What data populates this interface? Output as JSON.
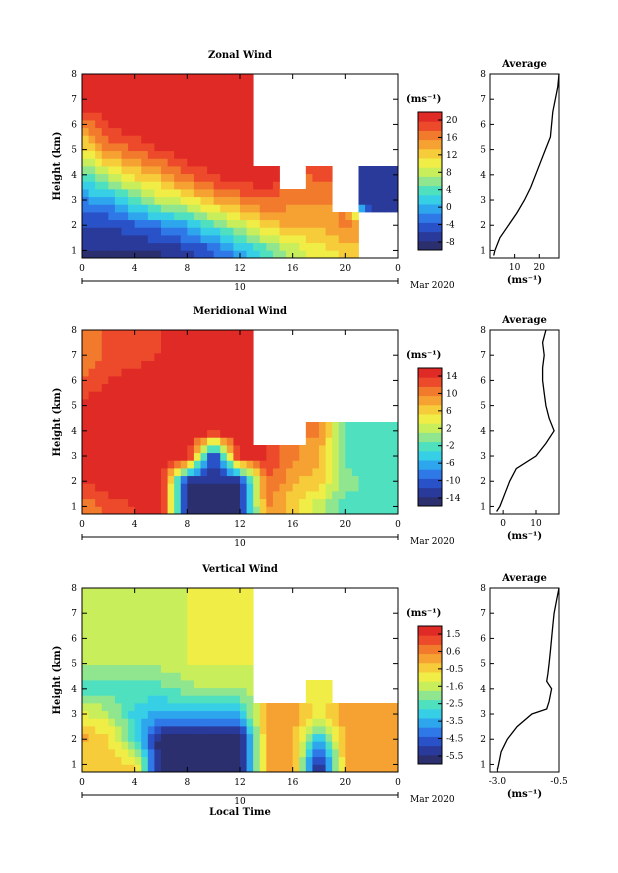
{
  "chart_data": [
    {
      "type": "heatmap",
      "title": "Zonal Wind",
      "ylabel": "Height (km)",
      "x_ticks": [
        "0",
        "4",
        "8",
        "12",
        "16",
        "20",
        "0"
      ],
      "xlim": [
        0,
        24
      ],
      "y_ticks": [
        "1",
        "2",
        "3",
        "4",
        "5",
        "6",
        "7",
        "8"
      ],
      "ylim": [
        0.7,
        8
      ],
      "date_label": "10",
      "date_suffix": "Mar 2020",
      "colorbar": {
        "unit": "(ms⁻¹)",
        "ticks": [
          "20",
          "16",
          "12",
          "8",
          "4",
          "0",
          "-4",
          "-8"
        ],
        "range": [
          -10,
          22
        ]
      },
      "sample_grid": {
        "hours": [
          0,
          2,
          4,
          6,
          8,
          10,
          12,
          14,
          16,
          18,
          20,
          22
        ],
        "heights_km": [
          1,
          2,
          3,
          4,
          5,
          6,
          7
        ],
        "values": [
          [
            -8,
            -6,
            -2,
            4,
            10,
            16,
            22
          ],
          [
            -8,
            -6,
            0,
            8,
            16,
            20,
            22
          ],
          [
            -8,
            -4,
            4,
            12,
            18,
            22,
            22
          ],
          [
            -8,
            -2,
            8,
            14,
            20,
            22,
            22
          ],
          [
            -6,
            0,
            10,
            18,
            22,
            22,
            22
          ],
          [
            -4,
            4,
            14,
            20,
            22,
            22,
            22
          ],
          [
            0,
            8,
            16,
            22,
            22,
            22,
            22
          ],
          [
            4,
            12,
            18,
            22,
            null,
            null,
            null
          ],
          [
            8,
            14,
            16,
            null,
            null,
            null,
            null
          ],
          [
            10,
            14,
            16,
            18,
            null,
            null,
            null
          ],
          [
            12,
            16,
            null,
            null,
            null,
            null,
            null
          ],
          [
            null,
            null,
            -6,
            -6,
            null,
            null,
            null
          ]
        ]
      },
      "average_profile": {
        "title": "Average",
        "xlabel": "(ms⁻¹)",
        "x_ticks": [
          "10",
          "20"
        ],
        "xlim": [
          0,
          28
        ],
        "height_km": [
          0.8,
          1.0,
          1.5,
          2.0,
          2.5,
          3.0,
          3.5,
          4.0,
          4.5,
          5.0,
          5.5,
          6.0,
          6.5,
          7.0,
          7.5,
          8.0
        ],
        "value": [
          1.5,
          2.0,
          4.0,
          7.5,
          11.0,
          14.0,
          16.5,
          18.5,
          20.5,
          22.5,
          24.5,
          25.0,
          25.5,
          26.5,
          27.5,
          28.0
        ]
      }
    },
    {
      "type": "heatmap",
      "title": "Meridional Wind",
      "ylabel": "Height (km)",
      "x_ticks": [
        "0",
        "4",
        "8",
        "12",
        "16",
        "20",
        "0"
      ],
      "xlim": [
        0,
        24
      ],
      "y_ticks": [
        "1",
        "2",
        "3",
        "4",
        "5",
        "6",
        "7",
        "8"
      ],
      "ylim": [
        0.7,
        8
      ],
      "date_label": "10",
      "date_suffix": "Mar 2020",
      "colorbar": {
        "unit": "(ms⁻¹)",
        "ticks": [
          "14",
          "10",
          "6",
          "2",
          "-2",
          "-6",
          "-10",
          "-14"
        ],
        "range": [
          -16,
          16
        ]
      },
      "sample_grid": {
        "hours": [
          0,
          2,
          4,
          6,
          8,
          10,
          12,
          14,
          16,
          18,
          20,
          22
        ],
        "heights_km": [
          1,
          2,
          3,
          4,
          5,
          6,
          7
        ],
        "values": [
          [
            10,
            14,
            16,
            16,
            14,
            12,
            10
          ],
          [
            12,
            16,
            16,
            16,
            16,
            14,
            12
          ],
          [
            14,
            16,
            16,
            16,
            16,
            16,
            12
          ],
          [
            16,
            16,
            16,
            16,
            16,
            16,
            14
          ],
          [
            -14,
            -14,
            16,
            16,
            16,
            16,
            16
          ],
          [
            -14,
            -14,
            -14,
            16,
            16,
            16,
            16
          ],
          [
            -14,
            -14,
            16,
            16,
            16,
            16,
            16
          ],
          [
            10,
            12,
            14,
            null,
            null,
            null,
            null
          ],
          [
            6,
            8,
            10,
            null,
            null,
            null,
            null
          ],
          [
            2,
            6,
            8,
            10,
            null,
            null,
            null
          ],
          [
            -2,
            0,
            -2,
            -2,
            null,
            null,
            null
          ],
          [
            -2,
            -2,
            -2,
            -2,
            null,
            null,
            null
          ]
        ]
      },
      "average_profile": {
        "title": "Average",
        "xlabel": "(ms⁻¹)",
        "x_ticks": [
          "0",
          "10"
        ],
        "xlim": [
          -4,
          17
        ],
        "height_km": [
          0.8,
          1.0,
          1.5,
          2.0,
          2.5,
          3.0,
          3.5,
          4.0,
          4.5,
          5.0,
          5.5,
          6.0,
          6.5,
          7.0,
          7.5,
          8.0
        ],
        "value": [
          -2.0,
          -1.0,
          0.5,
          2.0,
          4.0,
          10.0,
          13.0,
          15.5,
          14.0,
          13.0,
          12.5,
          12.0,
          12.0,
          12.5,
          12.0,
          13.0
        ]
      }
    },
    {
      "type": "heatmap",
      "title": "Vertical Wind",
      "ylabel": "Height (km)",
      "xlabel": "Local Time",
      "x_ticks": [
        "0",
        "4",
        "8",
        "12",
        "16",
        "20",
        "0"
      ],
      "xlim": [
        0,
        24
      ],
      "y_ticks": [
        "1",
        "2",
        "3",
        "4",
        "5",
        "6",
        "7",
        "8"
      ],
      "ylim": [
        0.7,
        8
      ],
      "date_label": "10",
      "date_suffix": "Mar 2020",
      "colorbar": {
        "unit": "(ms⁻¹)",
        "ticks": [
          "1.5",
          "0.6",
          "-0.5",
          "-1.6",
          "-2.5",
          "-3.5",
          "-4.5",
          "-5.5"
        ],
        "range": [
          -6,
          2
        ]
      },
      "sample_grid": {
        "hours": [
          0,
          2,
          4,
          6,
          8,
          10,
          12,
          14,
          16,
          18,
          20,
          22
        ],
        "heights_km": [
          1,
          2,
          3,
          4,
          5,
          6,
          7
        ],
        "values": [
          [
            -0.5,
            0.0,
            -1.0,
            -2.5,
            -1.6,
            -1.6,
            -1.6
          ],
          [
            -0.5,
            -0.5,
            -1.6,
            -2.5,
            -1.6,
            -1.6,
            -1.6
          ],
          [
            -0.5,
            -2.5,
            -3.0,
            -2.5,
            -1.6,
            -1.6,
            -1.6
          ],
          [
            -6,
            -6,
            -3.5,
            -2.5,
            -1.6,
            -1.6,
            -1.6
          ],
          [
            -6,
            -6,
            -3.5,
            -2.0,
            -1.2,
            -1.2,
            -1.2
          ],
          [
            -6,
            -6,
            -3.5,
            -1.6,
            -1.2,
            -1.2,
            -1.2
          ],
          [
            -6,
            -6,
            -3.5,
            -1.6,
            -1.2,
            -1.2,
            -1.2
          ],
          [
            0.0,
            0.0,
            0.0,
            null,
            null,
            null,
            null
          ],
          [
            0.2,
            0.2,
            0.2,
            null,
            null,
            null,
            null
          ],
          [
            -6,
            -3.5,
            -1.0,
            -1.0,
            null,
            null,
            null
          ],
          [
            0.0,
            0.2,
            0.2,
            null,
            null,
            null,
            null
          ],
          [
            0.3,
            0.3,
            0.3,
            null,
            null,
            null,
            null
          ]
        ]
      },
      "average_profile": {
        "title": "Average",
        "xlabel": "(ms⁻¹)",
        "x_ticks": [
          "-3.0",
          "-0.5"
        ],
        "xlim": [
          -3.3,
          -0.5
        ],
        "height_km": [
          0.8,
          1.0,
          1.5,
          2.0,
          2.5,
          3.0,
          3.2,
          3.5,
          4.0,
          4.3,
          4.6,
          5.0,
          5.5,
          6.0,
          6.5,
          7.0,
          7.5,
          8.0
        ],
        "value": [
          -3.0,
          -2.95,
          -2.85,
          -2.6,
          -2.2,
          -1.6,
          -1.0,
          -0.9,
          -0.8,
          -1.0,
          -0.95,
          -0.9,
          -0.85,
          -0.8,
          -0.75,
          -0.7,
          -0.6,
          -0.5
        ]
      }
    }
  ]
}
